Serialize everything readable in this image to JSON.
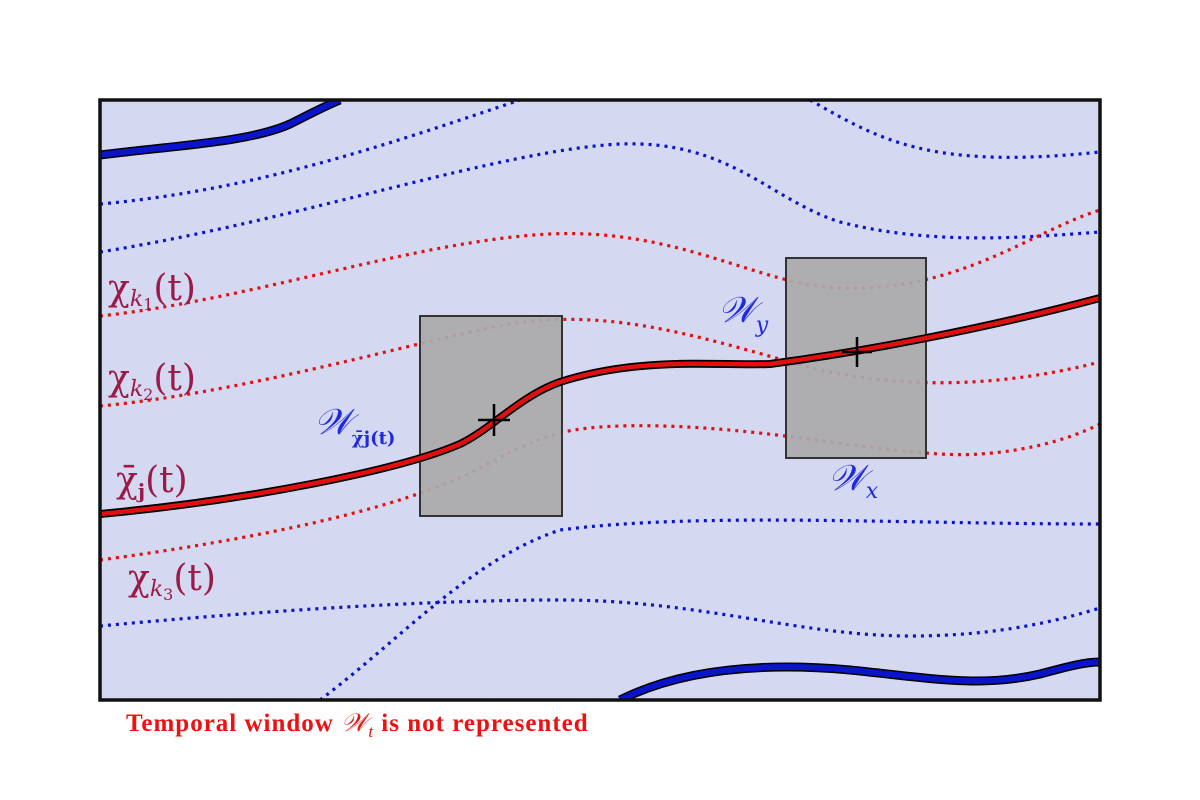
{
  "colors": {
    "domain_fill": "#d5d8f1",
    "window_fill": "#aaaaaa",
    "blue": "#0a14c8",
    "red": "#e01010",
    "label_red": "#9a1a48",
    "label_blue": "#1f2ae0",
    "caption": "#ee1111"
  },
  "labels": {
    "chi_k1": {
      "symbol": "χ",
      "sub_main": "k",
      "sub_index": "1",
      "arg": "(t)"
    },
    "chi_k2": {
      "symbol": "χ",
      "sub_main": "k",
      "sub_index": "2",
      "arg": "(t)"
    },
    "chi_k3": {
      "symbol": "χ",
      "sub_main": "k",
      "sub_index": "3",
      "arg": "(t)"
    },
    "chi_bar_j": {
      "symbol": "χ̄",
      "sub": "j",
      "arg": "(t)"
    },
    "window_chi": {
      "symbol": "𝒲",
      "sub": "χ̄j(t)"
    },
    "window_y": {
      "symbol": "𝒲",
      "sub": "y"
    },
    "window_x": {
      "symbol": "𝒲",
      "sub": "x"
    }
  },
  "caption": {
    "before": "Temporal window",
    "symbol": "𝒲",
    "sub": "t",
    "after": "is not represented"
  }
}
